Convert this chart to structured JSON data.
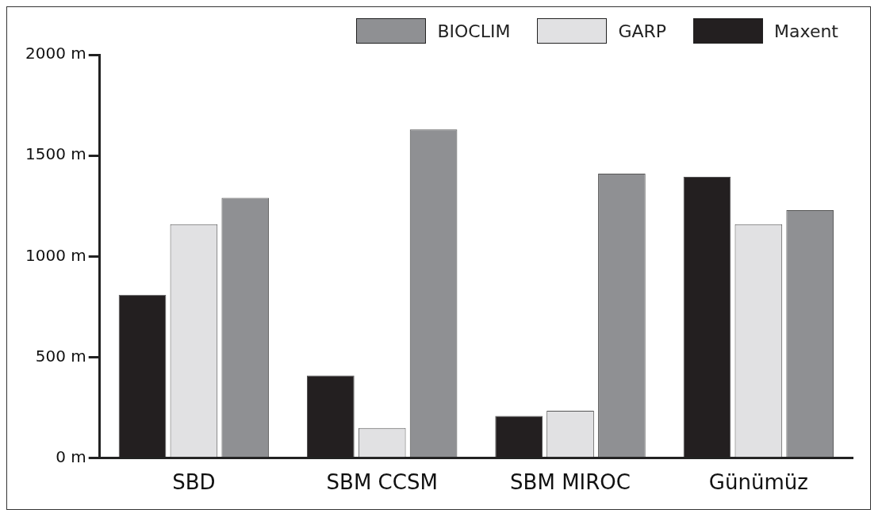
{
  "chart_data": {
    "type": "bar",
    "categories": [
      "SBD",
      "SBM CCSM",
      "SBM MIROC",
      "Günümüz"
    ],
    "series": [
      {
        "name": "Maxent",
        "color": "#231f20",
        "values": [
          810,
          410,
          210,
          1395
        ]
      },
      {
        "name": "GARP",
        "color": "#e1e1e3",
        "values": [
          1160,
          150,
          235,
          1160
        ]
      },
      {
        "name": "BIOCLIM",
        "color": "#8f9093",
        "values": [
          1290,
          1630,
          1410,
          1230
        ]
      }
    ],
    "ylim": [
      0,
      2000
    ],
    "yticks": [
      {
        "value": 0,
        "label": "0 m"
      },
      {
        "value": 500,
        "label": "500 m"
      },
      {
        "value": 1000,
        "label": "1000 m"
      },
      {
        "value": 1500,
        "label": "1500 m"
      },
      {
        "value": 2000,
        "label": "2000 m"
      }
    ],
    "grid": false,
    "legend": "top right"
  }
}
